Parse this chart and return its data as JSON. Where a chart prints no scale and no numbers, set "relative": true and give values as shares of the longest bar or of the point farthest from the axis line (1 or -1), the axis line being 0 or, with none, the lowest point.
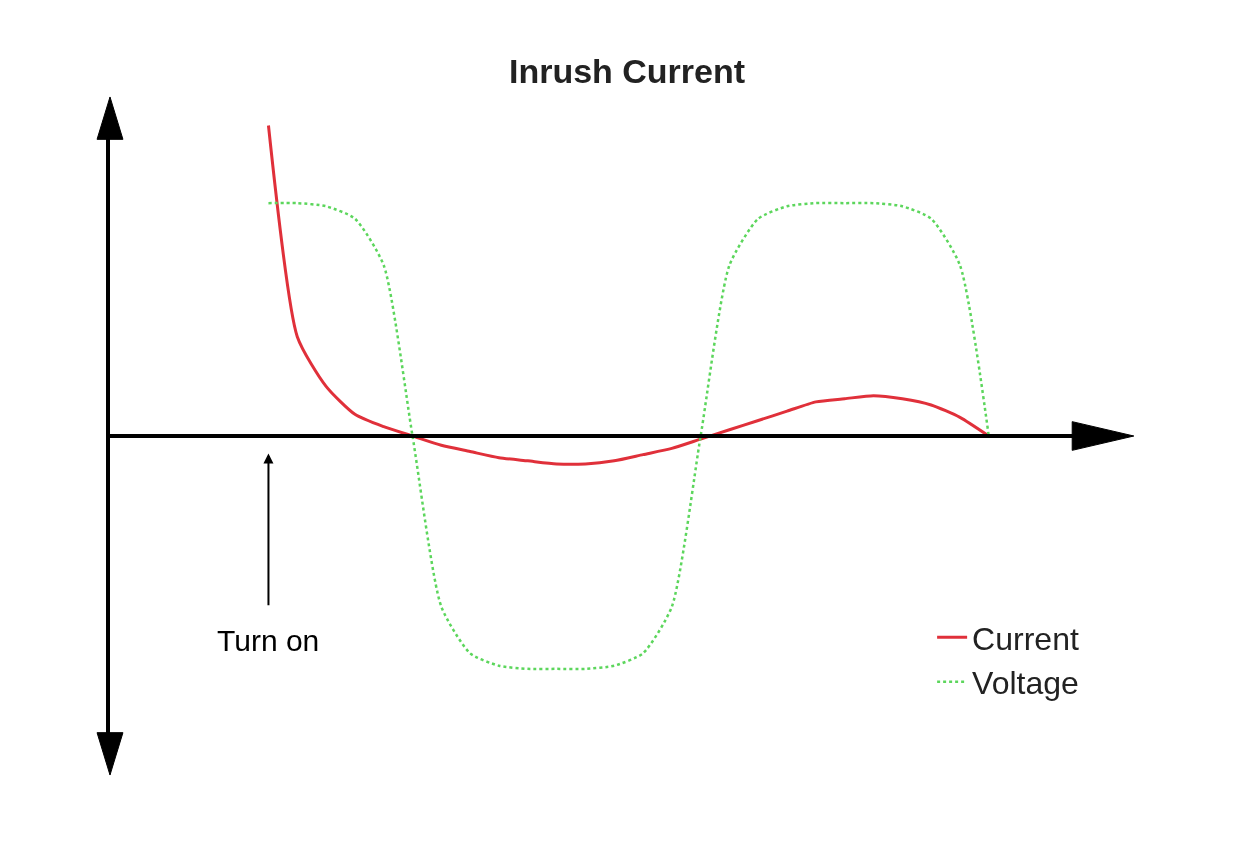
{
  "chart_data": {
    "type": "line",
    "title": "Inrush Current",
    "relative": true,
    "legend": "bottom right",
    "categories": [
      null,
      null,
      null,
      null,
      null,
      null,
      null,
      null,
      null,
      null,
      null,
      null,
      null,
      null,
      null,
      null,
      null,
      null,
      null,
      null,
      null,
      null,
      null,
      null,
      null,
      null,
      null,
      null,
      null,
      null,
      null,
      null,
      null,
      null
    ],
    "annotations": [
      "Turn on"
    ],
    "series": [
      {
        "name": "Current",
        "color": "#e0303a",
        "line_style": "solid",
        "values": [
          null,
          null,
          null,
          null,
          null,
          1,
          0.32,
          0.16,
          0.07,
          0.03,
          0,
          -0.03,
          -0.05,
          -0.07,
          -0.08,
          -0.09,
          -0.09,
          -0.08,
          -0.06,
          -0.04,
          -0.01,
          0.02,
          0.05,
          0.08,
          0.11,
          0.12,
          0.13,
          0.12,
          0.1,
          0.06,
          0,
          null,
          null,
          null
        ]
      },
      {
        "name": "Voltage",
        "color": "#5cd65c",
        "line_style": "dotted",
        "values": [
          null,
          null,
          null,
          null,
          null,
          0.75,
          0.75,
          0.74,
          0.7,
          0.55,
          0,
          -0.55,
          -0.7,
          -0.74,
          -0.75,
          -0.75,
          -0.75,
          -0.74,
          -0.7,
          -0.55,
          0,
          0.55,
          0.7,
          0.74,
          0.75,
          0.75,
          0.75,
          0.74,
          0.7,
          0.55,
          0,
          null,
          null,
          null
        ]
      }
    ]
  }
}
